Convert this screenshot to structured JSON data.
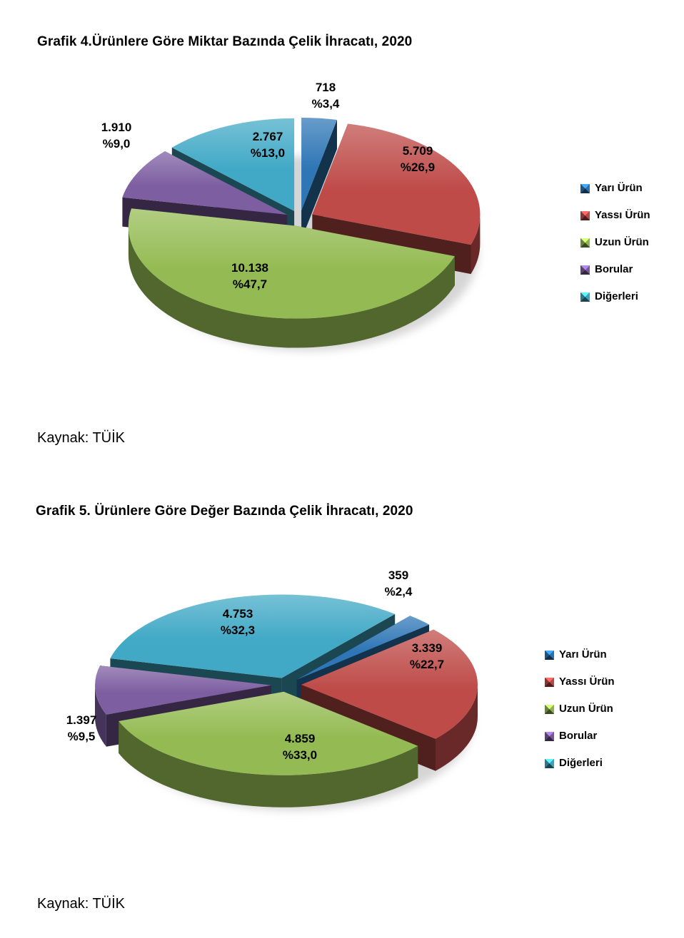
{
  "chart_data": [
    {
      "type": "pie",
      "style": "3d-exploded-pie",
      "title": "Grafik 4.Ürünlere Göre Miktar Bazında Çelik İhracatı, 2020",
      "categories": [
        "Yarı Ürün",
        "Yassı Ürün",
        "Uzun Ürün",
        "Borular",
        "Diğerleri"
      ],
      "values": [
        718,
        5709,
        10138,
        1910,
        2767
      ],
      "value_labels": [
        "718",
        "5.709",
        "10.138",
        "1.910",
        "2.767"
      ],
      "percents": [
        3.4,
        26.9,
        47.7,
        9.0,
        13.0
      ],
      "percent_labels": [
        "%3,4",
        "%26,9",
        "%47,7",
        "%9,0",
        "%13,0"
      ],
      "colors": [
        "#2E76B6",
        "#BE4B48",
        "#94BB53",
        "#7D5EA1",
        "#41A9C6"
      ],
      "start_angle_deg": 0,
      "legend_position": "right",
      "source": "Kaynak: TÜİK"
    },
    {
      "type": "pie",
      "style": "3d-exploded-pie",
      "title": "Grafik 5. Ürünlere Göre Değer Bazında Çelik İhracatı, 2020",
      "categories": [
        "Yarı Ürün",
        "Yassı Ürün",
        "Uzun Ürün",
        "Borular",
        "Diğerleri"
      ],
      "values": [
        359,
        3339,
        4859,
        1397,
        4753
      ],
      "value_labels": [
        "359",
        "3.339",
        "4.859",
        "1.397",
        "4.753"
      ],
      "percents": [
        2.4,
        22.7,
        33.0,
        9.5,
        32.3
      ],
      "percent_labels": [
        "%2,4",
        "%22,7",
        "%33,0",
        "%9,5",
        "%32,3"
      ],
      "colors": [
        "#2E76B6",
        "#BE4B48",
        "#94BB53",
        "#7D5EA1",
        "#41A9C6"
      ],
      "start_angle_deg": 40,
      "legend_position": "right",
      "source": "Kaynak: TÜİK"
    }
  ]
}
